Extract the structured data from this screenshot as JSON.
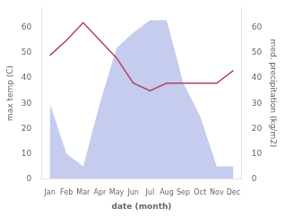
{
  "chart_data": {
    "type": "line",
    "categories": [
      "Jan",
      "Feb",
      "Mar",
      "Apr",
      "May",
      "Jun",
      "Jul",
      "Aug",
      "Sep",
      "Oct",
      "Nov",
      "Dec"
    ],
    "series": [
      {
        "type": "area",
        "color": "#c5ccee",
        "values": [
          30,
          10,
          5,
          30,
          52,
          58,
          63,
          63,
          38,
          25,
          5,
          5
        ]
      },
      {
        "type": "line",
        "color": "#b04060",
        "values": [
          49,
          55,
          62,
          55,
          48,
          38,
          35,
          38,
          38,
          38,
          38,
          43
        ]
      }
    ],
    "xlabel": "date (month)",
    "ylabel": "max temp (C)",
    "y2label": "med. precipitation (kg/m2)",
    "ylim": [
      0,
      68
    ],
    "yticks": [
      0,
      10,
      20,
      30,
      40,
      50,
      60
    ],
    "y2lim": [
      0,
      68
    ],
    "y2ticks": [
      0,
      10,
      20,
      30,
      40,
      50,
      60
    ],
    "grid": false
  }
}
